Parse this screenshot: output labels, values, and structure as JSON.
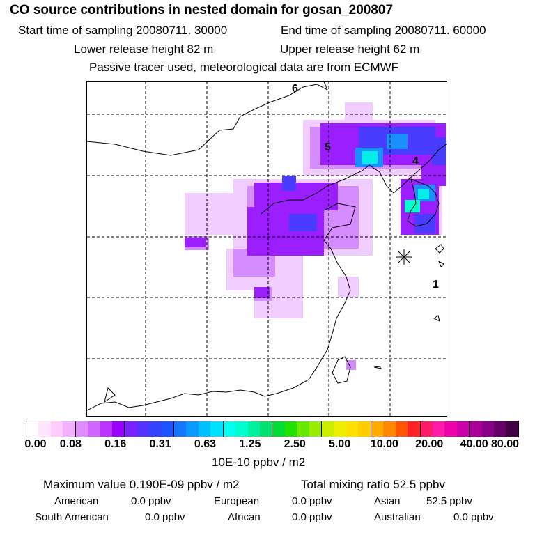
{
  "header": {
    "title": "CO  source contributions in nested domain for gosan_200807",
    "start_time": "Start time of sampling 20080711. 30000",
    "end_time": "End time of sampling 20080711. 60000",
    "lower_release": "Lower release height   82 m",
    "upper_release": "Upper release height   62 m",
    "tracer_note": "Passive tracer used, meteorological data are from ECMWF"
  },
  "map": {
    "region_labels": [
      "6",
      "5",
      "4",
      "1"
    ],
    "receptor_marker": "Gosan receptor site"
  },
  "colorbar": {
    "tick_labels": [
      "0.00",
      "0.08",
      "0.16",
      "0.31",
      "0.63",
      "1.25",
      "2.50",
      "5.00",
      "10.00",
      "20.00",
      "40.00",
      "80.00"
    ],
    "unit_label": "10E-10 ppbv / m2",
    "colors": [
      "#ffffff",
      "#ffe6ff",
      "#ffccff",
      "#f5b0ff",
      "#e08cff",
      "#d066ff",
      "#bb33ff",
      "#9900ff",
      "#7a22ff",
      "#5533ff",
      "#3344ff",
      "#1a55ff",
      "#1177ff",
      "#0a99ff",
      "#00c0ff",
      "#00e0ff",
      "#00ffee",
      "#00ffcc",
      "#00f0a0",
      "#00e070",
      "#00dd33",
      "#22e000",
      "#66e800",
      "#99ee00",
      "#ccee00",
      "#eeee00",
      "#ffe000",
      "#ffcc00",
      "#ffaa00",
      "#ff8800",
      "#ff5500",
      "#ff2222",
      "#ff1a66",
      "#ff1aaa",
      "#ee00aa",
      "#cc00aa",
      "#aa0099",
      "#880088",
      "#660066",
      "#440044"
    ]
  },
  "stats": {
    "max_value": "Maximum value  0.190E-09 ppbv / m2",
    "total_mixing": "Total mixing ratio       52.5 ppbv",
    "rows": [
      [
        {
          "name": "American",
          "value": "0.0 ppbv"
        },
        {
          "name": "European",
          "value": "0.0 ppbv"
        },
        {
          "name": "Asian",
          "value": "52.5 ppbv"
        }
      ],
      [
        {
          "name": "South American",
          "value": "0.0 ppbv"
        },
        {
          "name": "African",
          "value": "0.0 ppbv"
        },
        {
          "name": "Australian",
          "value": "0.0 ppbv"
        }
      ]
    ]
  }
}
